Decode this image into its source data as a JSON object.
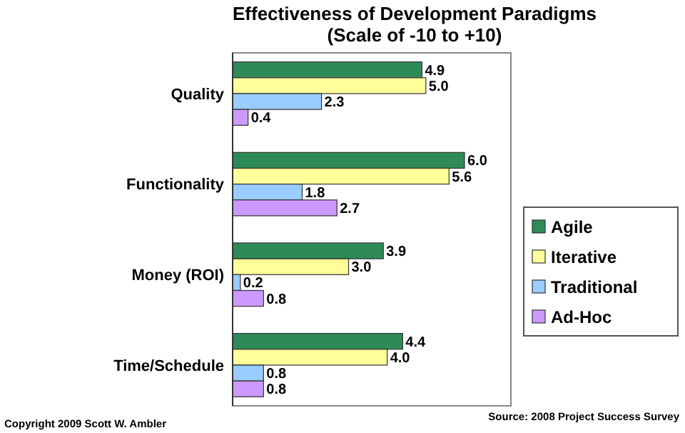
{
  "chart_data": {
    "type": "bar",
    "orientation": "horizontal",
    "title": "Effectiveness of Development Paradigms",
    "subtitle": "(Scale of -10 to +10)",
    "categories": [
      "Quality",
      "Functionality",
      "Money (ROI)",
      "Time/Schedule"
    ],
    "series": [
      {
        "name": "Agile",
        "color": "#2e8b57",
        "values": [
          4.9,
          6.0,
          3.9,
          4.4
        ],
        "value_labels": [
          "4.9",
          "6.0",
          "3.9",
          "4.4"
        ]
      },
      {
        "name": "Iterative",
        "color": "#ffff99",
        "values": [
          5.0,
          5.6,
          3.0,
          4.0
        ],
        "value_labels": [
          "5.0",
          "5.6",
          "3.0",
          "4.0"
        ]
      },
      {
        "name": "Traditional",
        "color": "#99ccff",
        "values": [
          2.3,
          1.8,
          0.2,
          0.8
        ],
        "value_labels": [
          "2.3",
          "1.8",
          "0.2",
          "0.8"
        ]
      },
      {
        "name": "Ad-Hoc",
        "color": "#cc99ff",
        "values": [
          0.4,
          2.7,
          0.8,
          0.8
        ],
        "value_labels": [
          "0.4",
          "2.7",
          "0.8",
          "0.8"
        ]
      }
    ],
    "legend": "right",
    "grid": false,
    "annotations": [
      "Copyright 2009 Scott W. Ambler",
      "Source: 2008 Project Success Survey"
    ]
  }
}
